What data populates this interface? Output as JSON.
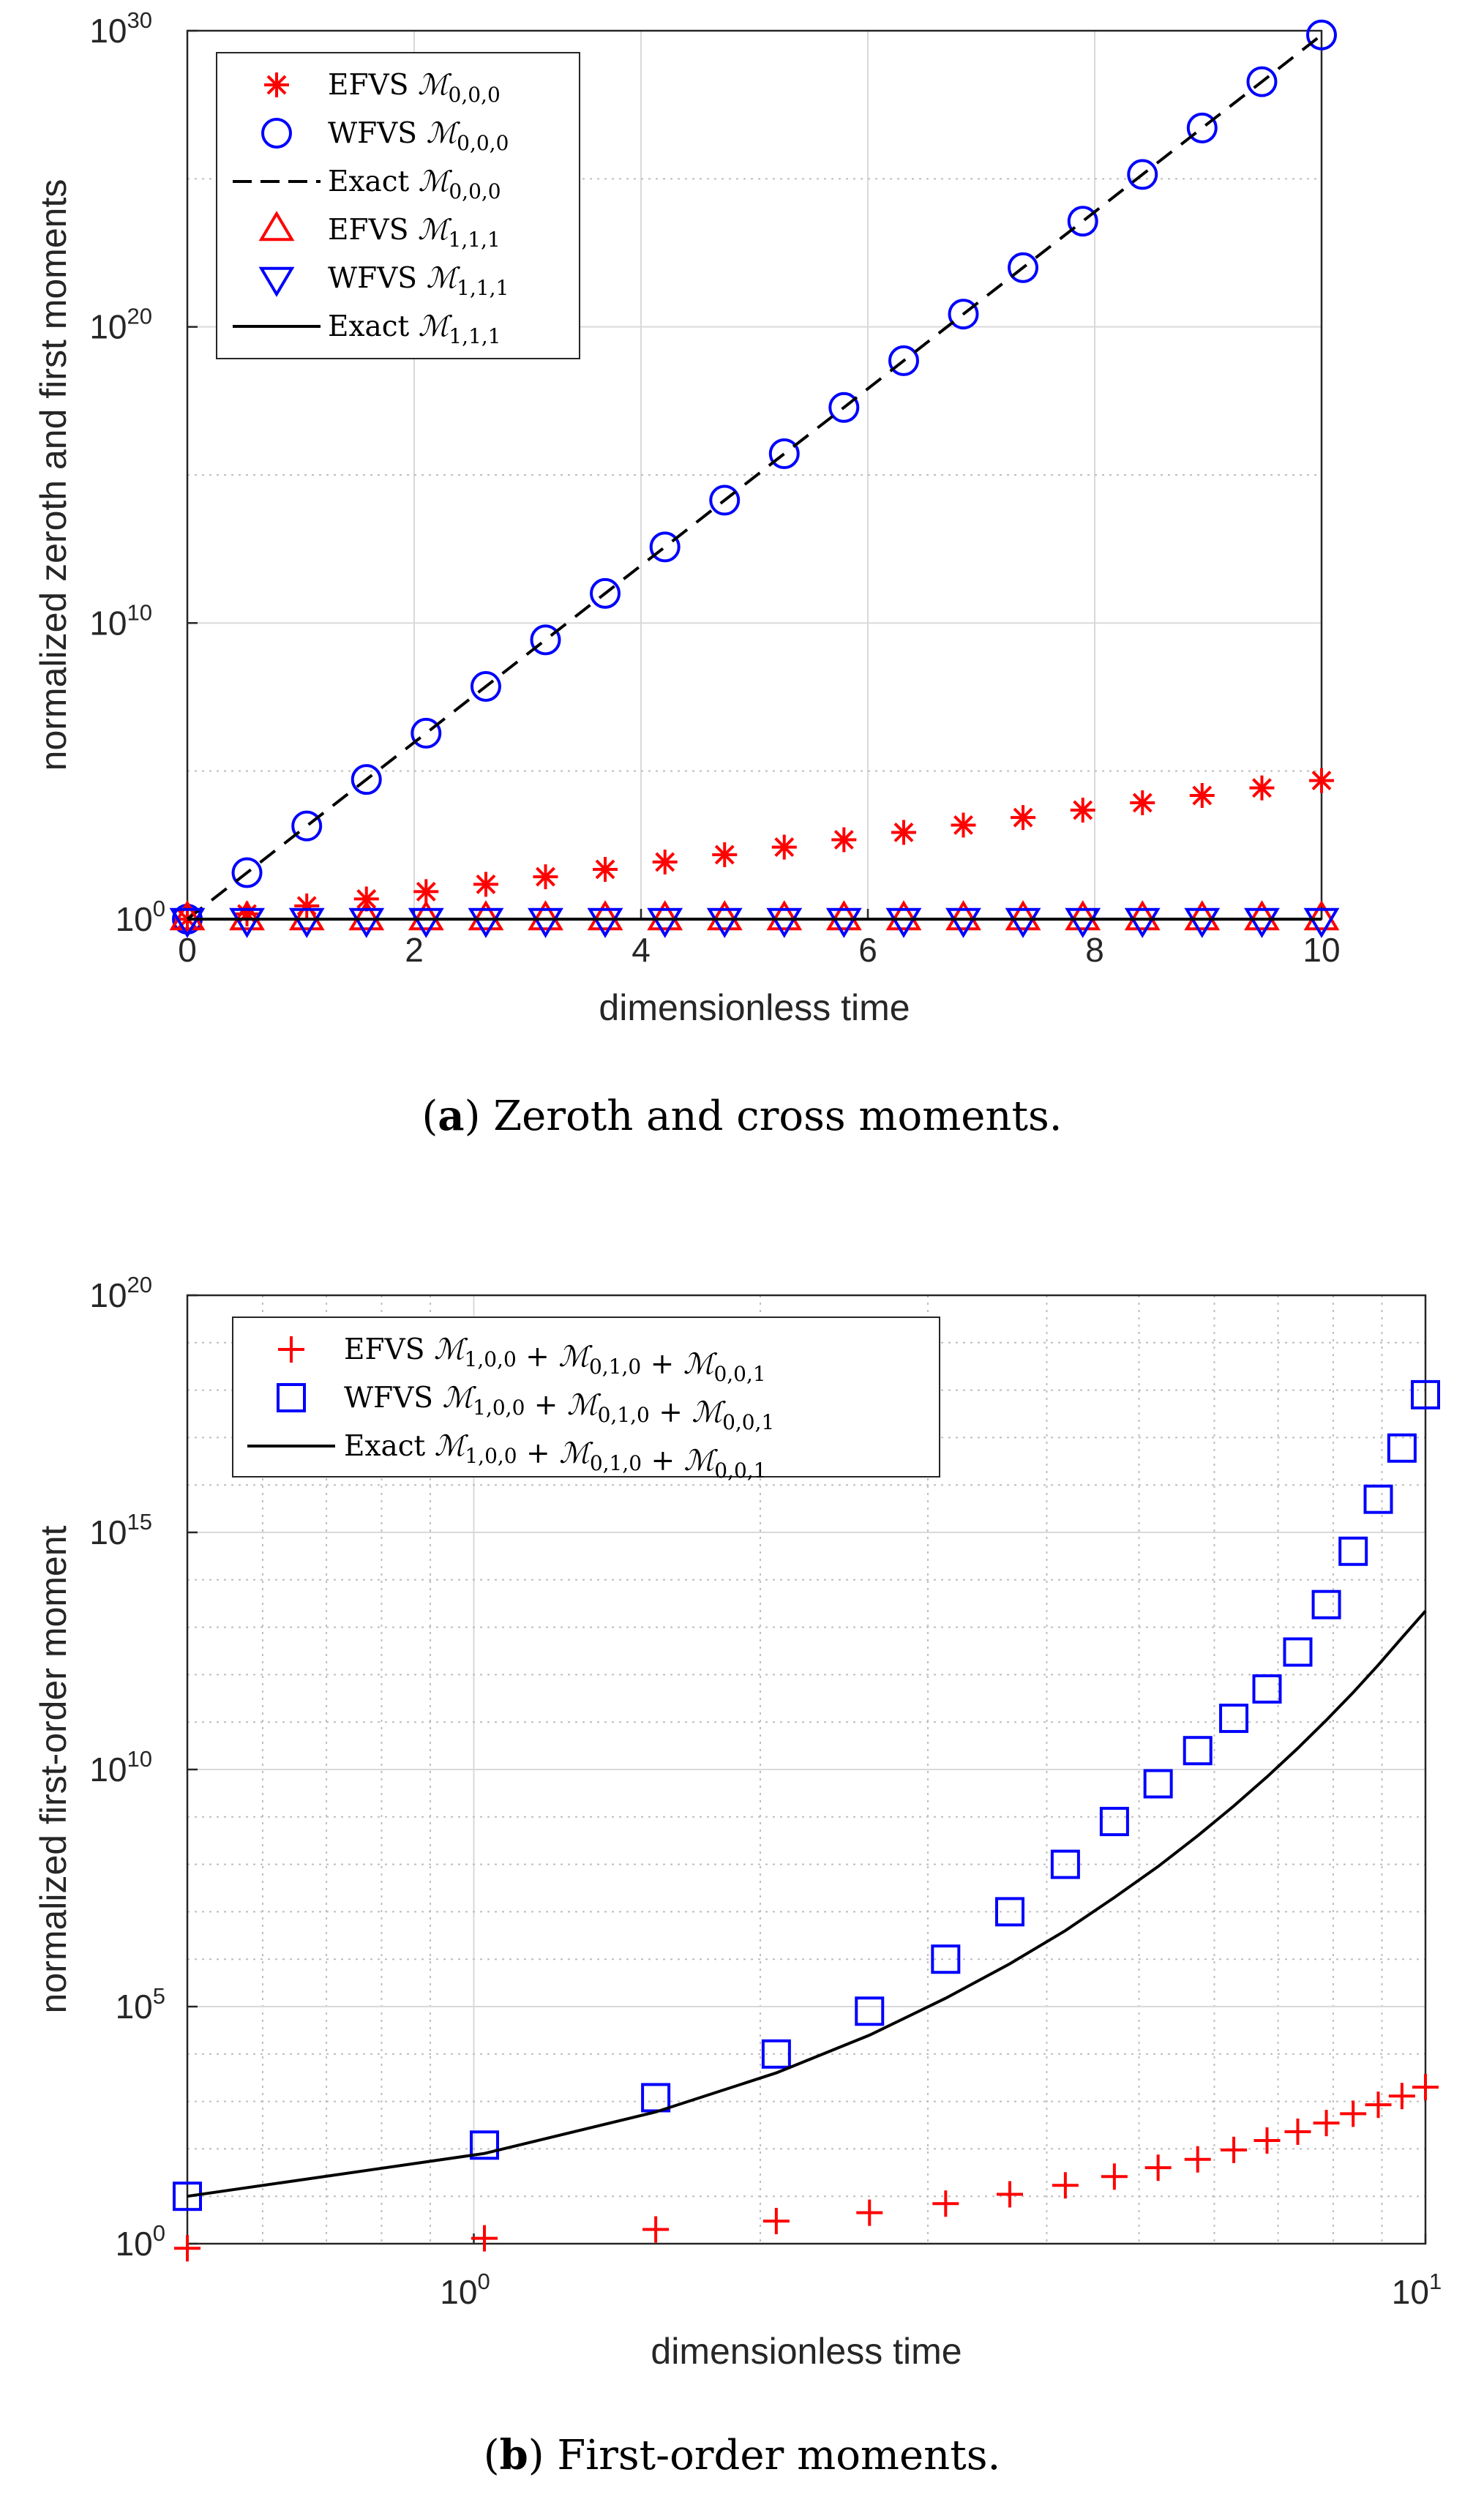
{
  "chart_data": [
    {
      "type": "scatter",
      "panel": "a",
      "caption_letter": "a",
      "caption_text": " Zeroth and cross moments.",
      "xlabel": "dimensionless time",
      "ylabel": "normalized zeroth and first moments",
      "xscale": "linear",
      "yscale": "log",
      "xlim": [
        0,
        10
      ],
      "ylim": [
        1,
        1e+30
      ],
      "xticks": [
        0,
        2,
        4,
        6,
        8,
        10
      ],
      "yticks": [
        {
          "base": "10",
          "exp": "0",
          "value": 1
        },
        {
          "base": "10",
          "exp": "10",
          "value": 10000000000.0
        },
        {
          "base": "10",
          "exp": "20",
          "value": 1e+20
        },
        {
          "base": "10",
          "exp": "30",
          "value": 1e+30
        }
      ],
      "grid": true,
      "legend_position": "top-left",
      "x": [
        0,
        0.526,
        1.053,
        1.579,
        2.105,
        2.632,
        3.158,
        3.684,
        4.211,
        4.737,
        5.263,
        5.789,
        6.316,
        6.842,
        7.368,
        7.895,
        8.421,
        8.947,
        9.474,
        10
      ],
      "series": [
        {
          "name": "EFVS",
          "moment": "0,0,0",
          "marker": "star",
          "color": "#ff0000",
          "values": [
            1,
            1.5,
            2.8,
            4.8,
            8.5,
            15,
            27,
            48,
            85,
            150,
            270,
            480,
            850,
            1500,
            2700,
            4800,
            8500,
            15000,
            27000,
            48000
          ]
        },
        {
          "name": "WFVS",
          "moment": "0,0,0",
          "marker": "circle",
          "color": "#0000ff",
          "values": [
            1,
            37.0,
            1400.0,
            52000.0,
            1900000.0,
            72000000.0,
            2700000000.0,
            100000000000.0,
            3700000000000.0,
            140000000000000.0,
            5200000000000000.0,
            1.9e+17,
            7.2e+18,
            2.7e+20,
            1e+22,
            3.7e+23,
            1.4e+25,
            5.2e+26,
            1.9e+28,
            7.2e+29
          ]
        },
        {
          "name": "Exact",
          "moment": "0,0,0",
          "marker": "dashed",
          "color": "#000000",
          "values": [
            1,
            37.0,
            1400.0,
            52000.0,
            1900000.0,
            72000000.0,
            2700000000.0,
            100000000000.0,
            3700000000000.0,
            140000000000000.0,
            5200000000000000.0,
            1.9e+17,
            7.2e+18,
            2.7e+20,
            1e+22,
            3.7e+23,
            1.4e+25,
            5.2e+26,
            1.9e+28,
            7.2e+29
          ]
        },
        {
          "name": "EFVS",
          "moment": "1,1,1",
          "marker": "triangle-up",
          "color": "#ff0000",
          "values": [
            1,
            1,
            1,
            1,
            1,
            1,
            1,
            1,
            1,
            1,
            1,
            1,
            1,
            1,
            1,
            1,
            1,
            1,
            1,
            1
          ]
        },
        {
          "name": "WFVS",
          "moment": "1,1,1",
          "marker": "triangle-down",
          "color": "#0000ff",
          "values": [
            1,
            1,
            1,
            1,
            1,
            1,
            1,
            1,
            1,
            1,
            1,
            1,
            1,
            1,
            1,
            1,
            1,
            1,
            1,
            1
          ]
        },
        {
          "name": "Exact",
          "moment": "1,1,1",
          "marker": "solid",
          "color": "#000000",
          "values": [
            1,
            1,
            1,
            1,
            1,
            1,
            1,
            1,
            1,
            1,
            1,
            1,
            1,
            1,
            1,
            1,
            1,
            1,
            1,
            1
          ]
        }
      ]
    },
    {
      "type": "scatter",
      "panel": "b",
      "caption_letter": "b",
      "caption_text": " First-order moments.",
      "xlabel": "dimensionless time",
      "ylabel": "normalized first-order moment",
      "xscale": "log",
      "yscale": "log",
      "xlim": [
        0.5,
        10
      ],
      "ylim": [
        1,
        1e+20
      ],
      "xticks": [
        {
          "base": "10",
          "exp": "0",
          "value": 1
        },
        {
          "base": "10",
          "exp": "1",
          "value": 10
        }
      ],
      "yticks": [
        {
          "base": "10",
          "exp": "0",
          "value": 1
        },
        {
          "base": "10",
          "exp": "5",
          "value": 100000.0
        },
        {
          "base": "10",
          "exp": "10",
          "value": 10000000000.0
        },
        {
          "base": "10",
          "exp": "15",
          "value": 1000000000000000.0
        },
        {
          "base": "10",
          "exp": "20",
          "value": 1e+20
        }
      ],
      "grid": true,
      "legend_position": "top-left",
      "x": [
        0.5,
        1.026,
        1.553,
        2.079,
        2.605,
        3.132,
        3.658,
        4.184,
        4.711,
        5.237,
        5.763,
        6.289,
        6.816,
        7.342,
        7.868,
        8.395,
        8.921,
        9.447,
        10
      ],
      "series": [
        {
          "name": "EFVS",
          "moment": "1,0,0 + 0,1,0 + 0,0,1",
          "marker": "plus",
          "color": "#ff0000",
          "values": [
            0.8,
            1.3,
            2.0,
            3.0,
            4.5,
            7.0,
            11,
            17,
            26,
            40,
            60,
            95,
            150,
            230,
            350,
            550,
            850,
            1300,
            2000
          ]
        },
        {
          "name": "WFVS",
          "moment": "1,0,0 + 0,1,0 + 0,0,1",
          "marker": "square",
          "color": "#0000ff",
          "values": [
            10,
            120,
            1200.0,
            10000.0,
            80000.0,
            1000000.0,
            10000000.0,
            100000000.0,
            800000000.0,
            5000000000.0,
            25000000000.0,
            120000000000.0,
            500000000000.0,
            3000000000000.0,
            30000000000000.0,
            400000000000000.0,
            5000000000000000.0,
            6e+16,
            8e+17
          ]
        },
        {
          "name": "Exact",
          "moment": "1,0,0 + 0,1,0 + 0,0,1",
          "marker": "solid",
          "color": "#000000",
          "values": [
            10,
            80,
            600,
            4000.0,
            25000.0,
            150000.0,
            800000.0,
            4000000.0,
            20000000.0,
            90000000.0,
            400000000.0,
            1700000000.0,
            7000000000.0,
            28000000000.0,
            110000000000.0,
            420000000000.0,
            1600000000000.0,
            6000000000000.0,
            22000000000000.0
          ]
        }
      ]
    }
  ]
}
